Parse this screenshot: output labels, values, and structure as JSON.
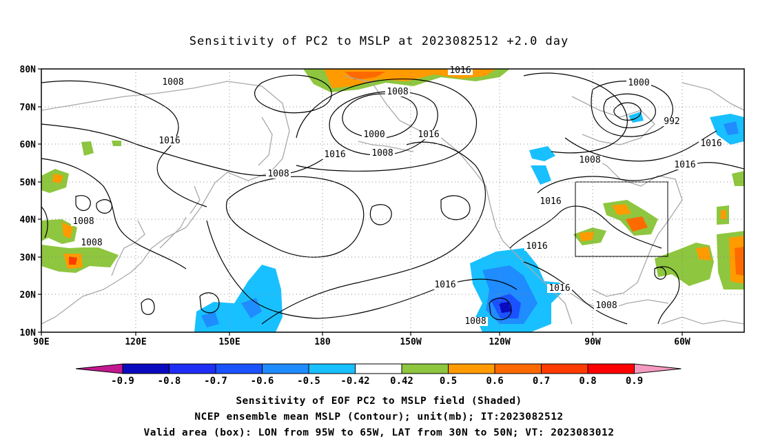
{
  "title": "Sensitivity of PC2 to MSLP at 2023082512 +2.0 day",
  "lat_ticks": [
    "80N",
    "70N",
    "60N",
    "50N",
    "40N",
    "30N",
    "20N",
    "10N"
  ],
  "lon_ticks": [
    "90E",
    "120E",
    "150E",
    "180",
    "150W",
    "120W",
    "90W",
    "60W"
  ],
  "contour_labels": [
    {
      "text": "1008"
    },
    {
      "text": "1016"
    },
    {
      "text": "1008"
    },
    {
      "text": "1016"
    },
    {
      "text": "1008"
    },
    {
      "text": "1000"
    },
    {
      "text": "1008"
    },
    {
      "text": "1016"
    },
    {
      "text": "1016"
    },
    {
      "text": "1000"
    },
    {
      "text": "992"
    },
    {
      "text": "1016"
    },
    {
      "text": "1008"
    },
    {
      "text": "1016"
    },
    {
      "text": "1016"
    },
    {
      "text": "1016"
    },
    {
      "text": "1016"
    },
    {
      "text": "1016"
    },
    {
      "text": "1008"
    },
    {
      "text": "1008"
    },
    {
      "text": "1008"
    },
    {
      "text": "1008"
    }
  ],
  "colorbar": {
    "labels": [
      "-0.9",
      "-0.8",
      "-0.7",
      "-0.6",
      "-0.5",
      "-0.42",
      "0.42",
      "0.5",
      "0.6",
      "0.7",
      "0.8",
      "0.9"
    ],
    "colors": [
      "#0a0abf",
      "#1e2ef5",
      "#1a52ff",
      "#1f8cff",
      "#19c0ff",
      "#ffffff",
      "#8ec63f",
      "#ff9b00",
      "#ff6a00",
      "#ff3c00",
      "#ff0000"
    ],
    "low_end_color": "#c2188f",
    "high_end_color": "#f49ac1"
  },
  "captions": {
    "line1": "Sensitivity of EOF PC2 to MSLP field (Shaded)",
    "line2": "NCEP ensemble mean MSLP (Contour); unit(mb); IT:2023082512",
    "line3": "Valid area (box): LON from 95W to 65W, LAT from 30N to 50N; VT: 2023083012"
  },
  "valid_area": {
    "lon_from": "95W",
    "lon_to": "65W",
    "lat_from": "30N",
    "lat_to": "50N"
  }
}
